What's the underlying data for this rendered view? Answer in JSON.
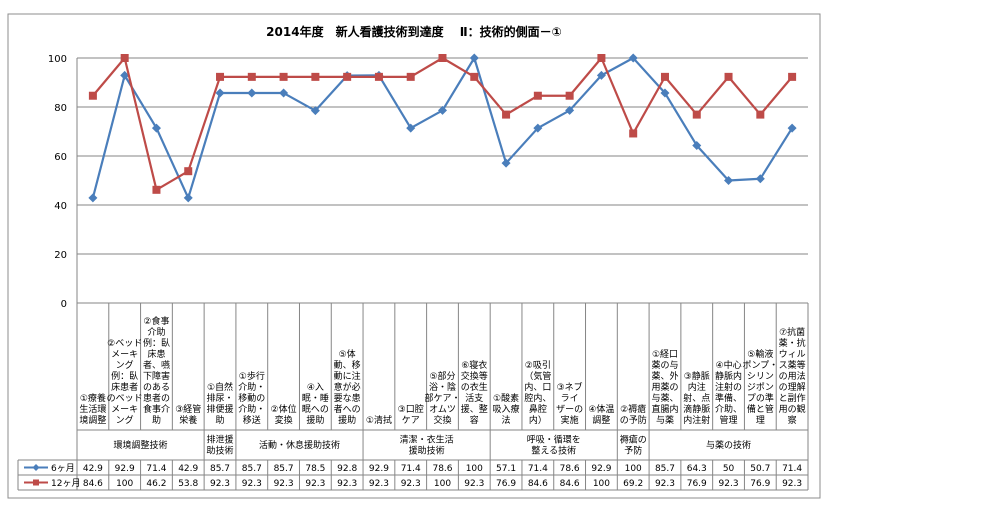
{
  "chart_data": {
    "type": "line",
    "title": "2014年度　新人看護技術到達度　 Ⅱ：技術的側面－①",
    "ylim": [
      0,
      100
    ],
    "yticks": [
      0,
      20,
      40,
      60,
      80,
      100
    ],
    "grid": true,
    "legend": "table-rows-bottom",
    "categories": [
      "①療養生活環境調整",
      "②ベッドメーキング　例：臥床患者のベッドメーキング",
      "②食事介助　例：臥床患者、嚥下障害のある患者の食事介助",
      "③経管栄養",
      "①自然排尿・排便援助",
      "①歩行介助・移動の介助・移送",
      "②体位変換",
      "④入眠・睡眠への援助",
      "⑤体動、移動に注意が必要な患者への援助",
      "①清拭",
      "③口腔ケア",
      "⑤部分浴・陰部ケア・オムツ交換",
      "⑥寝衣交換等の衣生活支援、整容",
      "①酸素吸入療法",
      "②吸引（気管内、口腔内、鼻腔内）",
      "③ネブライザーの実施",
      "④体温調整",
      "②褥瘡の予防",
      "①経口薬の与薬、外用薬の与薬、直腸内与薬",
      "③静脈内注射、点滴静脈内注射",
      "④中心静脈内注射の準備、介助、管理",
      "⑤輸液ポンプ・シリンジポンプの準備と管理",
      "⑦抗菌薬・抗ウィルス薬等の用法の理解と副作用の観察"
    ],
    "category_lines": [
      [
        "①療養",
        "生活環",
        "境調整"
      ],
      [
        "②ベッド",
        "メーキ",
        "ング",
        "例：臥",
        "床患者",
        "のベッド",
        "メーキ",
        "ング"
      ],
      [
        "②食事",
        "介助",
        "例：臥",
        "床患",
        "者、嚥",
        "下障害",
        "のある",
        "患者の",
        "食事介",
        "助"
      ],
      [
        "③経管",
        "栄養"
      ],
      [
        "①自然",
        "排尿・",
        "排便援",
        "助"
      ],
      [
        "①歩行",
        "介助・",
        "移動の",
        "介助・",
        "移送"
      ],
      [
        "②体位",
        "変換"
      ],
      [
        "④入",
        "眠・睡",
        "眠への",
        "援助"
      ],
      [
        "⑤体",
        "動、移",
        "動に注",
        "意が必",
        "要な患",
        "者への",
        "援助"
      ],
      [
        "①清拭"
      ],
      [
        "③口腔",
        "ケア"
      ],
      [
        "⑤部分",
        "浴・陰",
        "部ケア・",
        "オムツ",
        "交換"
      ],
      [
        "⑥寝衣",
        "交換等",
        "の衣生",
        "活支",
        "援、整",
        "容"
      ],
      [
        "①酸素",
        "吸入療",
        "法"
      ],
      [
        "②吸引",
        "（気管",
        "内、口",
        "腔内、",
        "鼻腔",
        "内）"
      ],
      [
        "③ネブ",
        "ライ",
        "ザーの",
        "実施"
      ],
      [
        "④体温",
        "調整"
      ],
      [
        "②褥瘡",
        "の予防"
      ],
      [
        "①経口",
        "薬の与",
        "薬、外",
        "用薬の",
        "与薬、",
        "直腸内",
        "与薬"
      ],
      [
        "③静脈",
        "内注",
        "射、点",
        "滴静脈",
        "内注射"
      ],
      [
        "④中心",
        "静脈内",
        "注射の",
        "準備、",
        "介助、",
        "管理"
      ],
      [
        "⑤輸液",
        "ポンプ・",
        "シリン",
        "ジポン",
        "プの準",
        "備と管",
        "理"
      ],
      [
        "⑦抗菌",
        "薬・抗",
        "ウィル",
        "ス薬等",
        "の用法",
        "の理解",
        "と副作",
        "用の観",
        "察"
      ]
    ],
    "groups": [
      {
        "lines": [
          "環境調整技術"
        ]
      },
      {
        "lines": [
          "排泄援",
          "助技術"
        ]
      },
      {
        "lines": [
          "活動・休息援助技術"
        ]
      },
      {
        "lines": [
          "清潔・衣生活",
          "援助技術"
        ]
      },
      {
        "lines": [
          "呼吸・循環を",
          "整える技術"
        ]
      },
      {
        "lines": [
          "褥瘡の",
          "予防"
        ]
      },
      {
        "lines": [
          "与薬の技術"
        ]
      }
    ],
    "series": [
      {
        "name": "6ヶ月",
        "color": "#4a7ebb",
        "marker": "diamond",
        "values": [
          42.9,
          92.9,
          71.4,
          42.9,
          85.7,
          85.7,
          85.7,
          78.5,
          92.8,
          92.9,
          71.4,
          78.6,
          100,
          57.1,
          71.4,
          78.6,
          92.9,
          100,
          85.7,
          64.3,
          50,
          50.7,
          71.4
        ]
      },
      {
        "name": "12ヶ月",
        "color": "#be4b48",
        "marker": "square",
        "values": [
          84.6,
          100,
          46.2,
          53.8,
          92.3,
          92.3,
          92.3,
          92.3,
          92.3,
          92.3,
          92.3,
          100,
          92.3,
          76.9,
          84.6,
          84.6,
          100,
          69.2,
          92.3,
          76.9,
          92.3,
          76.9,
          92.3
        ]
      }
    ]
  }
}
